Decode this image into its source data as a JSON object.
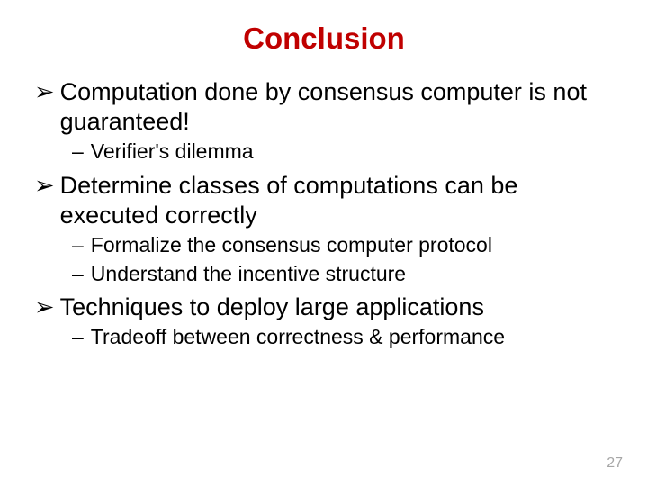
{
  "title": "Conclusion",
  "title_color": "#c00000",
  "title_fontsize": 33,
  "main_fontsize": 27,
  "sub_fontsize": 23,
  "text_color": "#000000",
  "background_color": "#ffffff",
  "main_marker": "➢",
  "sub_marker": "–",
  "page_number": "27",
  "page_number_color": "#a6a6a6",
  "page_number_fontsize": 16,
  "bullets": [
    {
      "text": "Computation done by consensus computer is not guaranteed!",
      "subs": [
        "Verifier's dilemma"
      ]
    },
    {
      "text": "Determine classes of computations can be executed correctly",
      "subs": [
        "Formalize the consensus computer protocol",
        "Understand the incentive structure"
      ]
    },
    {
      "text": "Techniques to deploy large applications",
      "subs": [
        "Tradeoff between correctness & performance"
      ]
    }
  ]
}
